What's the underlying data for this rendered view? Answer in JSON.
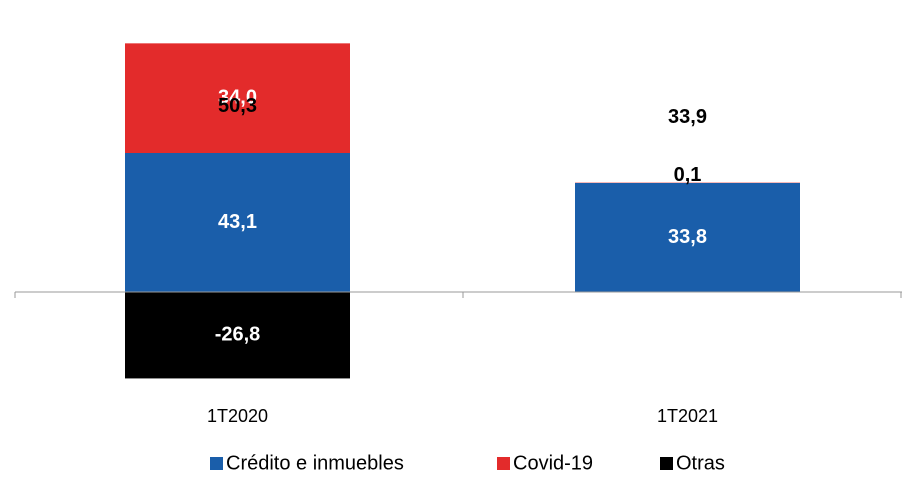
{
  "chart_data": {
    "type": "stacked_bar",
    "categories": [
      "1T2020",
      "1T2021"
    ],
    "series": [
      {
        "name": "Crédito e inmuebles",
        "color": "#1a5eaa",
        "values": [
          43.1,
          33.8
        ],
        "value_labels": [
          "43,1",
          "33,8"
        ]
      },
      {
        "name": "Covid-19",
        "color": "#e32b2b",
        "values": [
          34.0,
          0.1
        ],
        "value_labels": [
          "34,0",
          "0,1"
        ]
      },
      {
        "name": "Otras",
        "color": "#000000",
        "values": [
          -26.8,
          null
        ],
        "value_labels": [
          "-26,8",
          null
        ]
      }
    ],
    "totals": [
      50.3,
      33.9
    ],
    "total_labels": [
      "50,3",
      "33,9"
    ]
  }
}
